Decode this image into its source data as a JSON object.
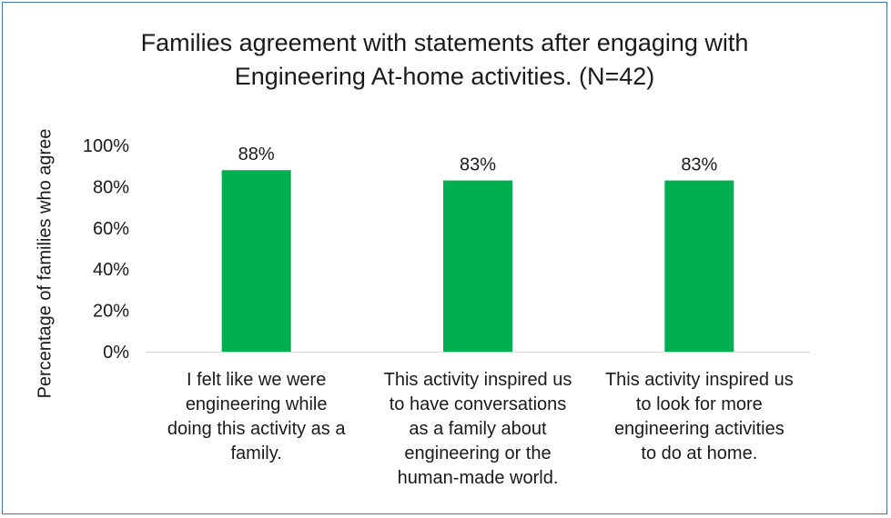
{
  "chart_data": {
    "type": "bar",
    "title": [
      "Families agreement with statements after engaging with",
      "Engineering At-home activities. (N=42)"
    ],
    "ylabel": "Percentage of families who agree",
    "xlabel": "",
    "ylim": [
      0,
      100
    ],
    "yticks": [
      "0%",
      "20%",
      "40%",
      "60%",
      "80%",
      "100%"
    ],
    "categories": [
      [
        "I felt like we were",
        "engineering while",
        "doing this activity as a",
        "family."
      ],
      [
        "This activity inspired us",
        "to have conversations",
        "as a family about",
        "engineering or the",
        "human-made world."
      ],
      [
        "This activity inspired us",
        "to look for more",
        "engineering activities",
        "to do at home."
      ]
    ],
    "values": [
      88,
      83,
      83
    ],
    "data_labels": [
      "88%",
      "83%",
      "83%"
    ],
    "bar_color": "#00b050",
    "grid": false,
    "legend": "none"
  }
}
